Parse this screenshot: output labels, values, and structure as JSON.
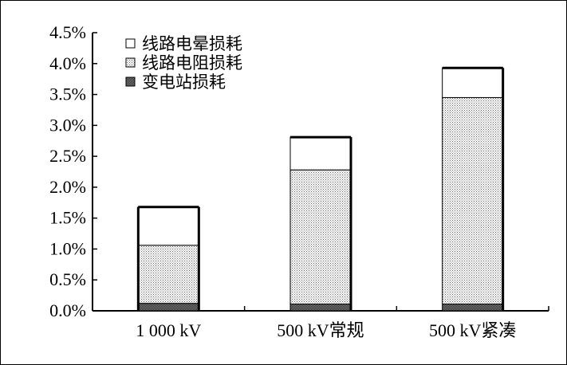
{
  "chart_data": {
    "type": "bar",
    "stacked": true,
    "categories": [
      "1 000 kV",
      "500 kV常规",
      "500 kV紧凑"
    ],
    "series": [
      {
        "name": "变电站损耗",
        "values": [
          0.12,
          0.11,
          0.11
        ],
        "pattern": "dense-dots",
        "color": "#555555"
      },
      {
        "name": "线路电阻损耗",
        "values": [
          0.94,
          2.17,
          3.34
        ],
        "pattern": "light-dots",
        "color": "#b0b0b0"
      },
      {
        "name": "线路电晕损耗",
        "values": [
          0.62,
          0.53,
          0.48
        ],
        "pattern": "none",
        "color": "#ffffff"
      }
    ],
    "legend_order": [
      2,
      1,
      0
    ],
    "ylim": [
      0,
      4.5
    ],
    "y_ticks": [
      "0.0%",
      "0.5%",
      "1.0%",
      "1.5%",
      "2.0%",
      "2.5%",
      "3.0%",
      "3.5%",
      "4.0%",
      "4.5%"
    ],
    "y_tick_values": [
      0,
      0.5,
      1.0,
      1.5,
      2.0,
      2.5,
      3.0,
      3.5,
      4.0,
      4.5
    ],
    "grid": false,
    "legend_position": "top-left",
    "title": "",
    "xlabel": "",
    "ylabel": ""
  }
}
